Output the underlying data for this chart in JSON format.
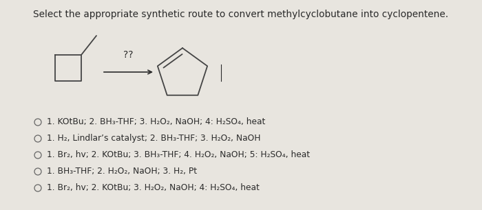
{
  "title": "Select the appropriate synthetic route to convert methylcyclobutane into cyclopentene.",
  "background_color": "#e8e5df",
  "text_color": "#2a2a2a",
  "title_fontsize": 9.8,
  "options": [
    "1. KOtBu; 2. BH₃-THF; 3. H₂O₂, NaOH; 4: H₂SO₄, heat",
    "1. H₂, Lindlar’s catalyst; 2. BH₃-THF; 3. H₂O₂, NaOH",
    "1. Br₂, hv; 2. KOtBu; 3. BH₃-THF; 4. H₂O₂, NaOH; 5: H₂SO₄, heat",
    "1. BH₃-THF; 2. H₂O₂, NaOH; 3. H₂, Pt",
    "1. Br₂, hv; 2. KOtBu; 3. H₂O₂, NaOH; 4: H₂SO₄, heat"
  ],
  "question_mark": "??",
  "arrow_color": "#2a2a2a",
  "option_fontsize": 8.8,
  "molecule_color": "#444444",
  "mol_lw": 1.3
}
